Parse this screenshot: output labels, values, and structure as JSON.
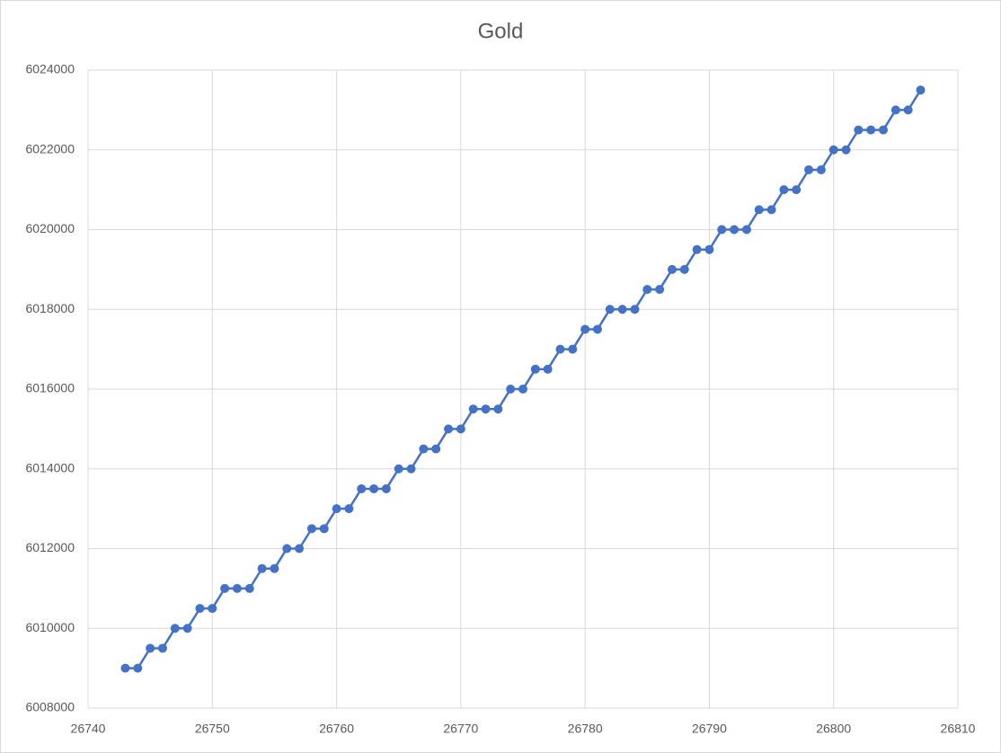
{
  "chart_data": {
    "type": "line",
    "title": "Gold",
    "color": "#4472c4",
    "markers": true,
    "grid": true,
    "x": [
      26743,
      26744,
      26745,
      26746,
      26747,
      26748,
      26749,
      26750,
      26751,
      26752,
      26753,
      26754,
      26755,
      26756,
      26757,
      26758,
      26759,
      26760,
      26761,
      26762,
      26763,
      26764,
      26765,
      26766,
      26767,
      26768,
      26769,
      26770,
      26771,
      26772,
      26773,
      26774,
      26775,
      26776,
      26777,
      26778,
      26779,
      26780,
      26781,
      26782,
      26783,
      26784,
      26785,
      26786,
      26787,
      26788,
      26789,
      26790,
      26791,
      26792,
      26793,
      26794,
      26795,
      26796,
      26797,
      26798,
      26799,
      26800,
      26801,
      26802,
      26803,
      26804,
      26805,
      26806,
      26807
    ],
    "values": [
      6009000,
      6009000,
      6009500,
      6009500,
      6010000,
      6010000,
      6010500,
      6010500,
      6011000,
      6011000,
      6011000,
      6011500,
      6011500,
      6012000,
      6012000,
      6012500,
      6012500,
      6013000,
      6013000,
      6013500,
      6013500,
      6013500,
      6014000,
      6014000,
      6014500,
      6014500,
      6015000,
      6015000,
      6015500,
      6015500,
      6015500,
      6016000,
      6016000,
      6016500,
      6016500,
      6017000,
      6017000,
      6017500,
      6017500,
      6018000,
      6018000,
      6018000,
      6018500,
      6018500,
      6019000,
      6019000,
      6019500,
      6019500,
      6020000,
      6020000,
      6020000,
      6020500,
      6020500,
      6021000,
      6021000,
      6021500,
      6021500,
      6022000,
      6022000,
      6022500,
      6022500,
      6022500,
      6023000,
      6023000,
      6023500
    ],
    "xlim": [
      26740,
      26810
    ],
    "xticks": [
      26740,
      26750,
      26760,
      26770,
      26780,
      26790,
      26800,
      26810
    ],
    "ylim": [
      6008000,
      6024000
    ],
    "yticks": [
      6008000,
      6010000,
      6012000,
      6014000,
      6016000,
      6018000,
      6020000,
      6022000,
      6024000
    ]
  }
}
